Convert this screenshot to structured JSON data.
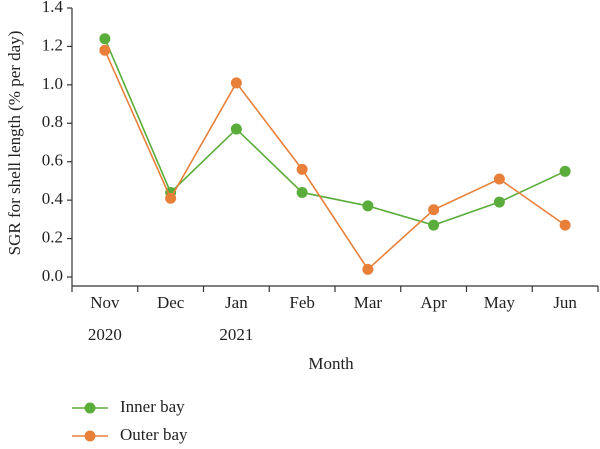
{
  "chart_data": {
    "type": "line",
    "x_label": "Month",
    "y_label": "SGR for shell length (% per day)",
    "categories": [
      "Nov\n2020",
      "Dec",
      "Jan\n2021",
      "Feb",
      "Mar",
      "Apr",
      "May",
      "Jun"
    ],
    "series": [
      {
        "name": "Inner bay",
        "color": "#5aad3b",
        "values": [
          1.24,
          0.44,
          0.77,
          0.44,
          0.37,
          0.27,
          0.39,
          0.55
        ]
      },
      {
        "name": "Outer bay",
        "color": "#e8803a",
        "values": [
          1.18,
          0.41,
          1.01,
          0.56,
          0.04,
          0.35,
          0.51,
          0.27
        ]
      }
    ],
    "ylim": [
      0,
      1.4
    ],
    "yticks": [
      {
        "value": 0,
        "label": "0.0"
      },
      0.2,
      0.4,
      0.6,
      0.8,
      {
        "value": 1,
        "label": "1.0"
      },
      1.2,
      1.4
    ],
    "legend": "bottom-left"
  }
}
